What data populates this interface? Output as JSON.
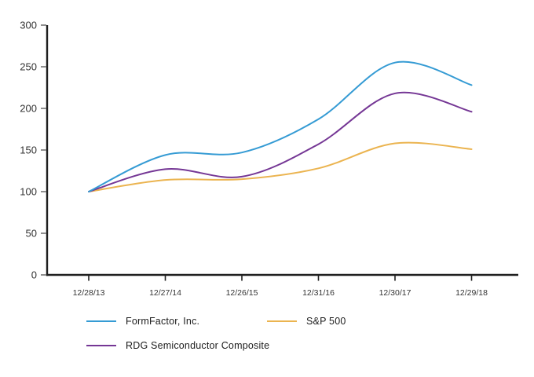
{
  "chart_data": {
    "type": "line",
    "title": "",
    "xlabel": "",
    "ylabel": "",
    "categories": [
      "12/28/13",
      "12/27/14",
      "12/26/15",
      "12/31/16",
      "12/30/17",
      "12/29/18"
    ],
    "series": [
      {
        "name": "FormFactor, Inc.",
        "color": "#359BD4",
        "values": [
          100,
          144,
          147,
          187,
          255,
          228
        ]
      },
      {
        "name": "S&P 500",
        "color": "#EBB450",
        "values": [
          100,
          114,
          115,
          128,
          158,
          151
        ]
      },
      {
        "name": "RDG Semiconductor Composite",
        "color": "#753795",
        "values": [
          100,
          127,
          118,
          157,
          218,
          196
        ]
      }
    ],
    "ylim": [
      0,
      300
    ],
    "yticks": [
      0,
      50,
      100,
      150,
      200,
      250,
      300
    ],
    "grid": false,
    "legend_position": "bottom",
    "line_smooth": true,
    "axis_color": "#1F1F1F",
    "ytick_mark_color": "#8F8F8F",
    "tick_label_color": "#333333"
  }
}
